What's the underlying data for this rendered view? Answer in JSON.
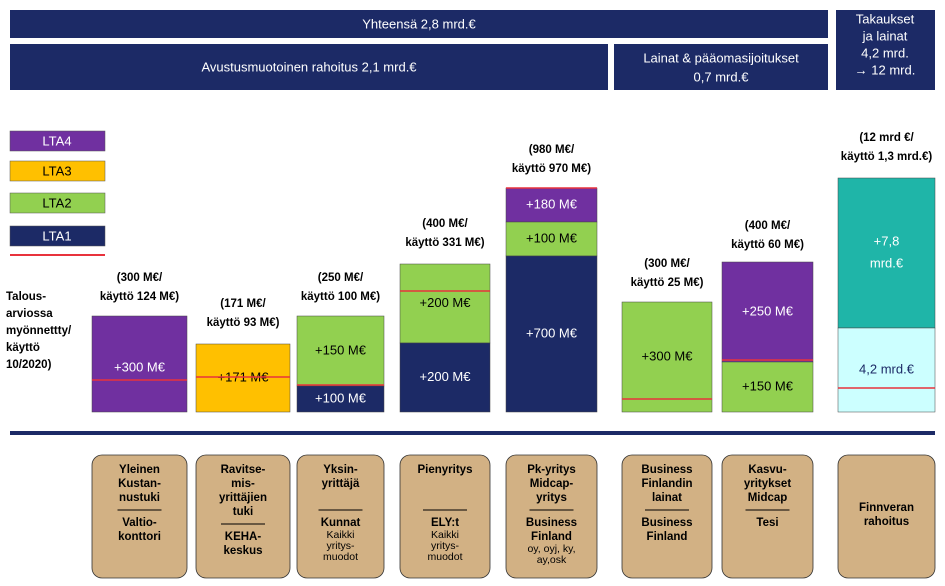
{
  "header": {
    "total": [
      "Yhteensä 2,8 mrd.€"
    ],
    "grants": [
      "Avustusmuotoinen rahoitus 2,1 mrd.€"
    ],
    "loans": [
      "Lainat & pääomasijoitukset",
      "0,7 mrd.€"
    ],
    "guarantees": [
      "Takaukset",
      "ja lainat",
      "4,2 mrd.",
      "→ 12 mrd."
    ]
  },
  "legend": [
    "LTA4",
    "LTA3",
    "LTA2",
    "LTA1"
  ],
  "side_label": [
    "Talous-",
    "arviossa",
    "myönnettty/",
    "käyttö",
    "10/2020)"
  ],
  "columns": [
    {
      "header": [
        "(300 M€/",
        "käyttö 124 M€)"
      ],
      "blocks": [
        [
          "+300 M€"
        ]
      ]
    },
    {
      "header": [
        "(171 M€/",
        "käyttö 93 M€)"
      ],
      "blocks": [
        [
          "+171 M€"
        ]
      ]
    },
    {
      "header": [
        "(250 M€/",
        "käyttö 100 M€)"
      ],
      "blocks": [
        [
          "+150 M€"
        ],
        [
          "+100 M€"
        ]
      ]
    },
    {
      "header": [
        "(400 M€/",
        "käyttö 331 M€)"
      ],
      "blocks": [
        [
          "+200 M€"
        ],
        [
          "+200 M€"
        ]
      ]
    },
    {
      "header": [
        "(980 M€/",
        "käyttö 970 M€)"
      ],
      "blocks": [
        [
          "+180 M€"
        ],
        [
          "+100 M€"
        ],
        [
          "+700 M€"
        ]
      ]
    },
    {
      "header": [
        "(300 M€/",
        "käyttö 25 M€)"
      ],
      "blocks": [
        [
          "+300 M€"
        ]
      ]
    },
    {
      "header": [
        "(400 M€/",
        "käyttö 60 M€)"
      ],
      "blocks": [
        [
          "+250 M€"
        ],
        [
          "+150 M€"
        ]
      ]
    },
    {
      "header": [
        "(12 mrd €/",
        "käyttö 1,3 mrd.€)"
      ],
      "blocks": [
        [
          "+7,8",
          "mrd.€"
        ],
        [
          "4,2 mrd.€"
        ]
      ]
    }
  ],
  "boxes": [
    {
      "top": [
        "Yleinen",
        "Kustan-",
        "nustuki"
      ],
      "bottom": [
        "Valtio-",
        "konttori"
      ],
      "note": []
    },
    {
      "top": [
        "Ravitse-",
        "mis-",
        "yrittäjien",
        "tuki"
      ],
      "bottom": [
        "KEHA-",
        "keskus"
      ],
      "note": []
    },
    {
      "top": [
        "Yksin-",
        "yrittäjä"
      ],
      "bottom": [
        "Kunnat"
      ],
      "note": [
        "Kaikki",
        "yritys-",
        "muodot"
      ]
    },
    {
      "top": [
        "Pienyritys"
      ],
      "bottom": [
        "ELY:t"
      ],
      "note": [
        "Kaikki",
        "yritys-",
        "muodot"
      ]
    },
    {
      "top": [
        "Pk-yritys",
        "Midcap-",
        "yritys"
      ],
      "bottom": [
        "Business",
        "Finland"
      ],
      "note": [
        "oy, oyj, ky,",
        "ay,osk"
      ]
    },
    {
      "top": [
        "Business",
        "Finlandin",
        "lainat"
      ],
      "bottom": [
        "Business",
        "Finland"
      ],
      "note": []
    },
    {
      "top": [
        "Kasvu-",
        "yritykset",
        "Midcap"
      ],
      "bottom": [
        "Tesi"
      ],
      "note": []
    },
    {
      "top": [
        "Finnveran",
        "rahoitus"
      ],
      "bottom": [],
      "note": []
    }
  ]
}
